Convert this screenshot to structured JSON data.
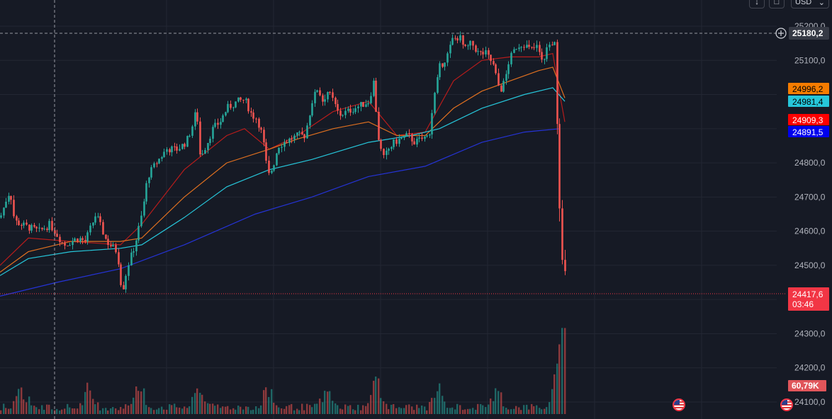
{
  "toolbar": {
    "download_icon": "arrow-down-icon",
    "snapshot_icon": "snapshot-icon",
    "currency_label": "USD",
    "currency_icon": "chevron-down-icon"
  },
  "crosshair": {
    "price_label": "25180,2",
    "add_icon": "plus-circle-icon"
  },
  "price_badges": [
    {
      "label": "24996,2",
      "color": "#f57c00",
      "text_color": "#000000"
    },
    {
      "label": "24981,4",
      "color": "#26c6da",
      "text_color": "#000000"
    },
    {
      "label": "24909,3",
      "color": "#ff0000",
      "text_color": "#ffffff"
    },
    {
      "label": "24891,5",
      "color": "#0000ee",
      "text_color": "#ffffff"
    }
  ],
  "last_price": {
    "label": "24417,6",
    "countdown": "03:46",
    "color": "#f23645"
  },
  "volume_badge": {
    "label": "60,79K",
    "color": "#f23645"
  },
  "events": {
    "icon": "us-flag-icon"
  },
  "chart_data": {
    "type": "candlestick",
    "y_ticks": [
      "25200,0",
      "25100,0",
      "24800,0",
      "24700,0",
      "24600,0",
      "24500,0",
      "24300,0",
      "24200,0",
      "24100,0"
    ],
    "ylim": [
      24050,
      25210
    ],
    "colors": {
      "background": "#161a25",
      "grid": "#232733",
      "up": "#26a69a",
      "down": "#ef5350",
      "ma_fast": "#b71c1c",
      "ma_mid": "#e07020",
      "ma_slow": "#26c6da",
      "ma_long": "#2533d6"
    },
    "anchors": [
      [
        0,
        24640
      ],
      [
        8,
        24690
      ],
      [
        14,
        24720
      ],
      [
        20,
        24630
      ],
      [
        35,
        24615
      ],
      [
        55,
        24600
      ],
      [
        70,
        24620
      ],
      [
        90,
        24560
      ],
      [
        110,
        24580
      ],
      [
        120,
        24570
      ],
      [
        135,
        24650
      ],
      [
        150,
        24570
      ],
      [
        165,
        24540
      ],
      [
        172,
        24420
      ],
      [
        180,
        24500
      ],
      [
        190,
        24560
      ],
      [
        200,
        24650
      ],
      [
        208,
        24760
      ],
      [
        220,
        24800
      ],
      [
        235,
        24840
      ],
      [
        250,
        24840
      ],
      [
        262,
        24860
      ],
      [
        270,
        24900
      ],
      [
        277,
        24960
      ],
      [
        282,
        24820
      ],
      [
        290,
        24850
      ],
      [
        300,
        24900
      ],
      [
        310,
        24920
      ],
      [
        320,
        24960
      ],
      [
        335,
        24980
      ],
      [
        345,
        24985
      ],
      [
        355,
        24940
      ],
      [
        362,
        24930
      ],
      [
        370,
        24880
      ],
      [
        378,
        24760
      ],
      [
        385,
        24790
      ],
      [
        392,
        24850
      ],
      [
        400,
        24860
      ],
      [
        410,
        24870
      ],
      [
        420,
        24880
      ],
      [
        430,
        24880
      ],
      [
        440,
        24980
      ],
      [
        448,
        25020
      ],
      [
        455,
        24980
      ],
      [
        462,
        25010
      ],
      [
        470,
        24980
      ],
      [
        478,
        24940
      ],
      [
        490,
        24950
      ],
      [
        500,
        24960
      ],
      [
        510,
        24970
      ],
      [
        520,
        24980
      ],
      [
        527,
        25040
      ],
      [
        533,
        24880
      ],
      [
        540,
        24810
      ],
      [
        548,
        24840
      ],
      [
        556,
        24860
      ],
      [
        565,
        24870
      ],
      [
        575,
        24880
      ],
      [
        585,
        24860
      ],
      [
        595,
        24870
      ],
      [
        605,
        24880
      ],
      [
        612,
        24990
      ],
      [
        620,
        25080
      ],
      [
        630,
        25110
      ],
      [
        638,
        25160
      ],
      [
        648,
        25170
      ],
      [
        655,
        25130
      ],
      [
        665,
        25150
      ],
      [
        675,
        25120
      ],
      [
        685,
        25120
      ],
      [
        695,
        25090
      ],
      [
        705,
        25010
      ],
      [
        712,
        25040
      ],
      [
        718,
        25100
      ],
      [
        728,
        25140
      ],
      [
        738,
        25150
      ],
      [
        748,
        25130
      ],
      [
        758,
        25140
      ],
      [
        765,
        25090
      ],
      [
        772,
        25140
      ],
      [
        778,
        25150
      ],
      [
        782,
        25160
      ],
      [
        785,
        24960
      ],
      [
        790,
        24620
      ],
      [
        793,
        24520
      ],
      [
        797,
        24470
      ],
      [
        799,
        24420
      ]
    ],
    "moving_averages": [
      {
        "name": "ma_fast",
        "points": [
          [
            0,
            24500
          ],
          [
            40,
            24580
          ],
          [
            100,
            24570
          ],
          [
            170,
            24560
          ],
          [
            200,
            24620
          ],
          [
            260,
            24780
          ],
          [
            320,
            24880
          ],
          [
            345,
            24900
          ],
          [
            380,
            24840
          ],
          [
            420,
            24880
          ],
          [
            470,
            24950
          ],
          [
            520,
            24980
          ],
          [
            560,
            24880
          ],
          [
            600,
            24890
          ],
          [
            640,
            25040
          ],
          [
            680,
            25100
          ],
          [
            720,
            25110
          ],
          [
            760,
            25110
          ],
          [
            780,
            25120
          ],
          [
            790,
            25000
          ],
          [
            797,
            24920
          ]
        ]
      },
      {
        "name": "ma_mid",
        "points": [
          [
            0,
            24480
          ],
          [
            40,
            24540
          ],
          [
            100,
            24570
          ],
          [
            170,
            24570
          ],
          [
            200,
            24580
          ],
          [
            260,
            24700
          ],
          [
            320,
            24800
          ],
          [
            380,
            24840
          ],
          [
            420,
            24870
          ],
          [
            470,
            24900
          ],
          [
            520,
            24920
          ],
          [
            560,
            24880
          ],
          [
            600,
            24880
          ],
          [
            640,
            24960
          ],
          [
            680,
            25010
          ],
          [
            720,
            25040
          ],
          [
            760,
            25070
          ],
          [
            780,
            25080
          ],
          [
            797,
            24990
          ]
        ]
      },
      {
        "name": "ma_slow",
        "points": [
          [
            0,
            24470
          ],
          [
            40,
            24520
          ],
          [
            100,
            24540
          ],
          [
            170,
            24550
          ],
          [
            200,
            24560
          ],
          [
            260,
            24640
          ],
          [
            320,
            24730
          ],
          [
            380,
            24780
          ],
          [
            440,
            24810
          ],
          [
            520,
            24860
          ],
          [
            580,
            24880
          ],
          [
            620,
            24900
          ],
          [
            680,
            24960
          ],
          [
            740,
            25000
          ],
          [
            780,
            25020
          ],
          [
            797,
            24980
          ]
        ]
      },
      {
        "name": "ma_long",
        "points": [
          [
            0,
            24410
          ],
          [
            80,
            24450
          ],
          [
            170,
            24490
          ],
          [
            260,
            24560
          ],
          [
            360,
            24650
          ],
          [
            440,
            24700
          ],
          [
            520,
            24760
          ],
          [
            600,
            24790
          ],
          [
            680,
            24860
          ],
          [
            740,
            24890
          ],
          [
            790,
            24900
          ]
        ]
      }
    ],
    "volume": {
      "max": 60.79,
      "clusters": [
        [
          30,
          14
        ],
        [
          125,
          13
        ],
        [
          195,
          16
        ],
        [
          280,
          14
        ],
        [
          378,
          16
        ],
        [
          460,
          11
        ],
        [
          532,
          18
        ],
        [
          618,
          12
        ],
        [
          700,
          13
        ],
        [
          788,
          28
        ]
      ]
    }
  }
}
